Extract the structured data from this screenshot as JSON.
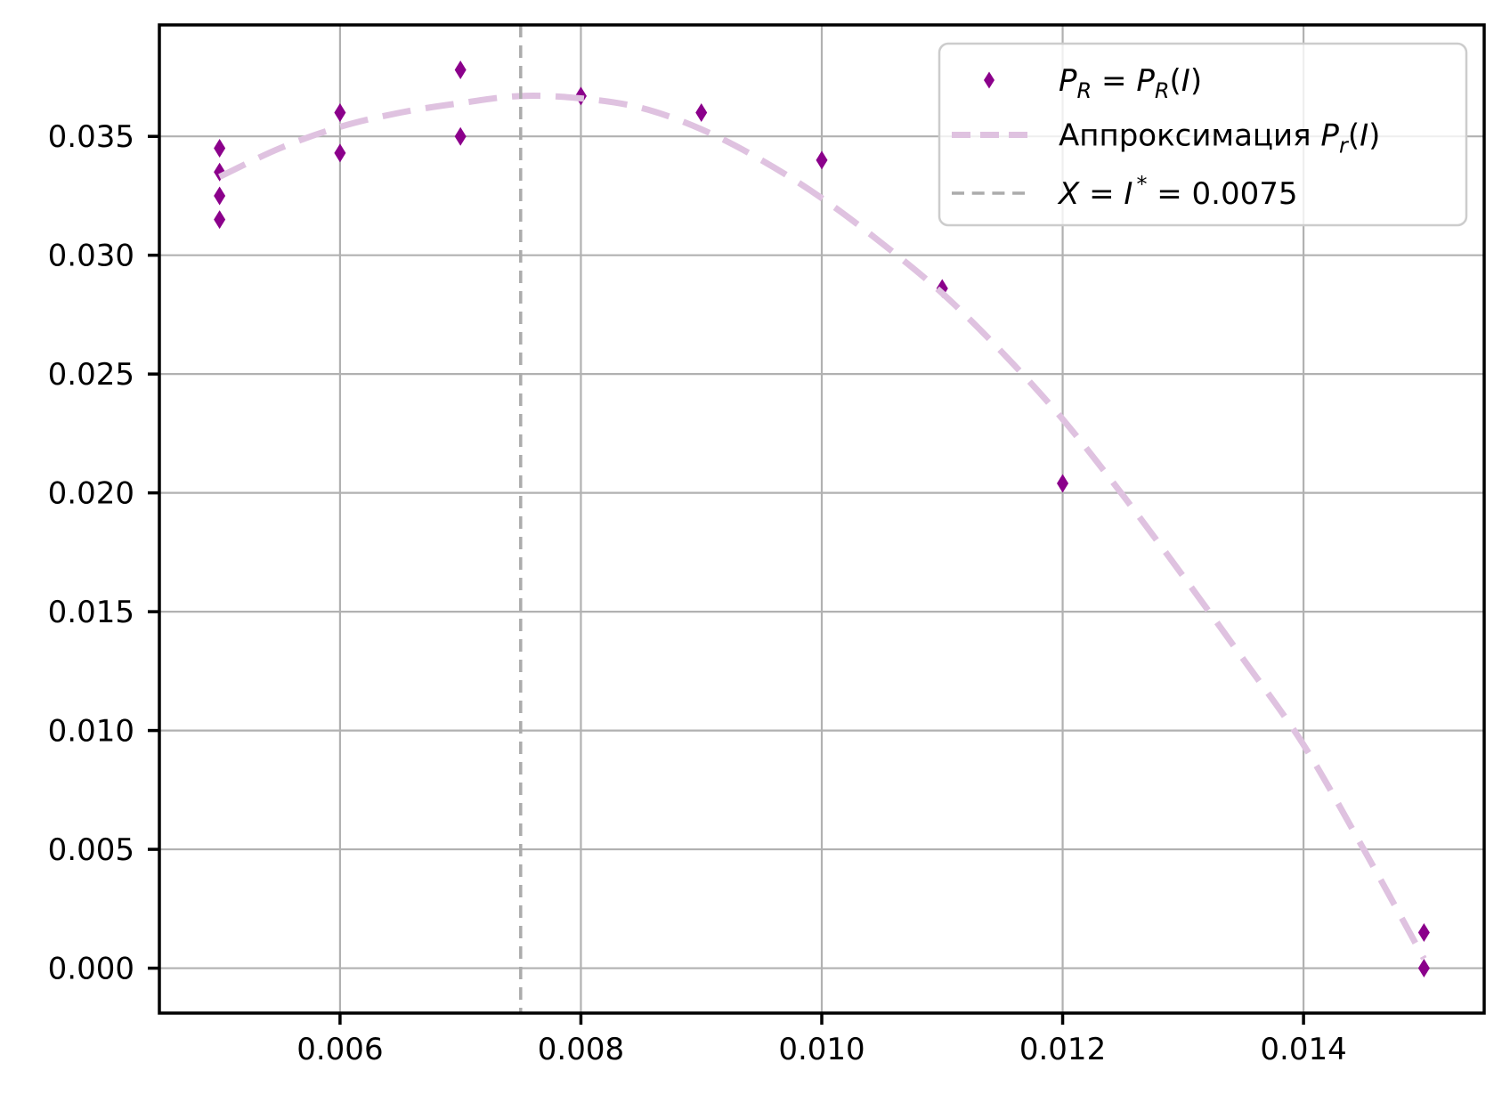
{
  "chart_data": {
    "type": "scatter",
    "title": "",
    "xlabel": "",
    "ylabel": "",
    "grid": true,
    "grid_color": "#b1b1b1",
    "background_color": "#ffffff",
    "spine_color": "#000000",
    "xlim": [
      0.0045,
      0.0155
    ],
    "ylim": [
      -0.00189,
      0.03969
    ],
    "xticks": {
      "values": [
        0.006,
        0.008,
        0.01,
        0.012,
        0.014
      ],
      "labels": [
        "0.006",
        "0.008",
        "0.010",
        "0.012",
        "0.014"
      ]
    },
    "yticks": {
      "values": [
        0.0,
        0.005,
        0.01,
        0.015,
        0.02,
        0.025,
        0.03,
        0.035
      ],
      "labels": [
        "0.000",
        "0.005",
        "0.010",
        "0.015",
        "0.020",
        "0.025",
        "0.030",
        "0.035"
      ]
    },
    "series": [
      {
        "id": "measured-points",
        "type": "scatter",
        "marker": "thin-diamond",
        "color": "#8B008B",
        "points": [
          [
            0.005,
            0.0345
          ],
          [
            0.005,
            0.0335
          ],
          [
            0.005,
            0.0325
          ],
          [
            0.005,
            0.0315
          ],
          [
            0.006,
            0.036
          ],
          [
            0.006,
            0.0343
          ],
          [
            0.007,
            0.0378
          ],
          [
            0.007,
            0.035
          ],
          [
            0.008,
            0.0367
          ],
          [
            0.009,
            0.036
          ],
          [
            0.01,
            0.034
          ],
          [
            0.011,
            0.0286
          ],
          [
            0.012,
            0.0204
          ],
          [
            0.015,
            0.0015
          ],
          [
            0.015,
            0.0
          ]
        ]
      },
      {
        "id": "approximation-curve",
        "type": "line",
        "linestyle": "dashed",
        "color": "#DFC2E0",
        "points": [
          [
            0.005,
            0.0333
          ],
          [
            0.0055,
            0.0345
          ],
          [
            0.006,
            0.0354
          ],
          [
            0.0065,
            0.036
          ],
          [
            0.007,
            0.0364
          ],
          [
            0.0075,
            0.0367
          ],
          [
            0.008,
            0.0366
          ],
          [
            0.0085,
            0.0362
          ],
          [
            0.009,
            0.0353
          ],
          [
            0.0095,
            0.034
          ],
          [
            0.01,
            0.0324
          ],
          [
            0.0105,
            0.0305
          ],
          [
            0.011,
            0.0284
          ],
          [
            0.0115,
            0.0259
          ],
          [
            0.012,
            0.0231
          ],
          [
            0.0125,
            0.0199
          ],
          [
            0.013,
            0.0165
          ],
          [
            0.0135,
            0.013
          ],
          [
            0.014,
            0.0094
          ],
          [
            0.0145,
            0.005
          ],
          [
            0.015,
            0.0004
          ]
        ]
      },
      {
        "id": "optimal-current-vline",
        "type": "vline",
        "linestyle": "dashed",
        "color": "#ABABAB",
        "x": 0.0075
      }
    ],
    "legend": {
      "position": "upper-right",
      "border_color": "#cccccc",
      "items": [
        {
          "swatch": "diamond",
          "color": "#8B008B",
          "label_plain": "P_R = P_R(I)",
          "segments": [
            {
              "text": "P",
              "style": "italic"
            },
            {
              "text": "R",
              "style": "italic-sub"
            },
            {
              "text": " = ",
              "style": "normal"
            },
            {
              "text": "P",
              "style": "italic"
            },
            {
              "text": "R",
              "style": "italic-sub"
            },
            {
              "text": "(",
              "style": "normal"
            },
            {
              "text": "I",
              "style": "italic"
            },
            {
              "text": ")",
              "style": "normal"
            }
          ]
        },
        {
          "swatch": "dash-long",
          "color": "#DFC2E0",
          "label_plain": "Аппроксимация P_r(I)",
          "segments": [
            {
              "text": "Аппроксимация ",
              "style": "normal"
            },
            {
              "text": "P",
              "style": "italic"
            },
            {
              "text": "r",
              "style": "italic-sub"
            },
            {
              "text": "(",
              "style": "normal"
            },
            {
              "text": "I",
              "style": "italic"
            },
            {
              "text": ")",
              "style": "normal"
            }
          ]
        },
        {
          "swatch": "dash-short",
          "color": "#ABABAB",
          "label_plain": "X = I* = 0.0075",
          "segments": [
            {
              "text": "X",
              "style": "italic"
            },
            {
              "text": " = ",
              "style": "normal"
            },
            {
              "text": "I",
              "style": "italic"
            },
            {
              "text": "*",
              "style": "sup"
            },
            {
              "text": " = 0.0075",
              "style": "normal"
            }
          ]
        }
      ]
    }
  }
}
